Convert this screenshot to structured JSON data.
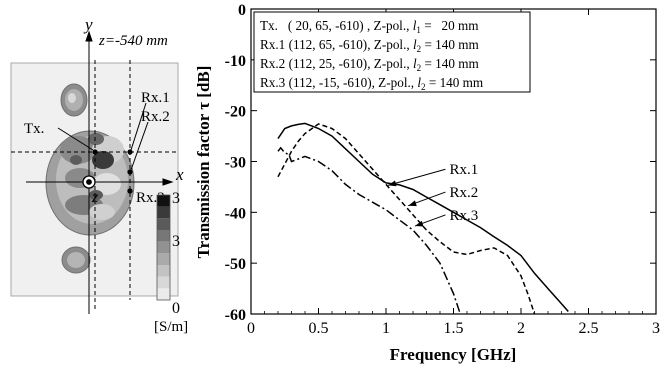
{
  "model_panel": {
    "y_axis_label": "y",
    "x_axis_label": "x",
    "z_axis_label": "z",
    "slice_label": "z=-540 mm",
    "tx_label": "Tx.",
    "rx_labels": [
      "Rx.1",
      "Rx.2",
      "Rx.3"
    ],
    "colorbar": {
      "max_label": "3",
      "mid_label": "3",
      "min_label": "0",
      "unit_label": "[S/m]",
      "colors": [
        "#111111",
        "#3a3a3a",
        "#5a5a5a",
        "#777777",
        "#929292",
        "#aaaaaa",
        "#c2c2c2",
        "#d8d8d8",
        "#ebebeb"
      ]
    }
  },
  "legend": {
    "lines": [
      {
        "prefix": "Tx.   ( 20, 65, -610) , Z-pol., ",
        "var": "l",
        "sub": "1",
        "suffix": " =   20 mm"
      },
      {
        "prefix": "Rx.1 (112, 65, -610), Z-pol., ",
        "var": "l",
        "sub": "2",
        "suffix": " = 140 mm"
      },
      {
        "prefix": "Rx.2 (112, 25, -610), Z-pol., ",
        "var": "l",
        "sub": "2",
        "suffix": " = 140 mm"
      },
      {
        "prefix": "Rx.3 (112, -15, -610), Z-pol., ",
        "var": "l",
        "sub": "2",
        "suffix": " = 140 mm"
      }
    ]
  },
  "chart_data": {
    "type": "line",
    "xlabel": "Frequency [GHz]",
    "ylabel": "Transmission factor τ [dB]",
    "xlim": [
      0,
      3
    ],
    "ylim": [
      -60,
      0
    ],
    "xticks": [
      0,
      0.5,
      1,
      1.5,
      2,
      2.5,
      3
    ],
    "xtick_labels": [
      "0",
      "0.5",
      "1",
      "1.5",
      "2",
      "2.5",
      "3"
    ],
    "yticks": [
      0,
      -10,
      -20,
      -30,
      -40,
      -50,
      -60
    ],
    "ytick_labels": [
      "0",
      "-10",
      "-20",
      "-30",
      "-40",
      "-50",
      "-60"
    ],
    "grid": false,
    "series": [
      {
        "name": "Rx.1",
        "style": "solid",
        "x": [
          0.2,
          0.25,
          0.3,
          0.35,
          0.4,
          0.5,
          0.6,
          0.7,
          0.8,
          0.9,
          1.0,
          1.1,
          1.2,
          1.3,
          1.4,
          1.5,
          1.6,
          1.7,
          1.8,
          1.9,
          2.0,
          2.1,
          2.2,
          2.3,
          2.35
        ],
        "y": [
          -25.5,
          -23.5,
          -23.0,
          -22.7,
          -22.5,
          -23.5,
          -25.0,
          -27.5,
          -30.0,
          -32.5,
          -34.2,
          -34.6,
          -35.5,
          -37.0,
          -38.5,
          -40.0,
          -41.5,
          -43.0,
          -44.8,
          -46.5,
          -48.5,
          -52.0,
          -55.0,
          -58.0,
          -59.5
        ]
      },
      {
        "name": "Rx.2",
        "style": "dashed",
        "x": [
          0.2,
          0.25,
          0.3,
          0.35,
          0.4,
          0.5,
          0.6,
          0.7,
          0.8,
          0.9,
          1.0,
          1.1,
          1.2,
          1.3,
          1.4,
          1.5,
          1.6,
          1.7,
          1.8,
          1.9,
          2.0,
          2.05,
          2.1
        ],
        "y": [
          -33.0,
          -30.5,
          -28.0,
          -26.0,
          -24.5,
          -22.6,
          -23.5,
          -25.5,
          -28.5,
          -31.5,
          -34.5,
          -37.5,
          -40.5,
          -43.5,
          -45.8,
          -47.8,
          -48.3,
          -47.5,
          -47.0,
          -48.5,
          -52.5,
          -56.0,
          -60.0
        ]
      },
      {
        "name": "Rx.3",
        "style": "dashdot",
        "x": [
          0.2,
          0.22,
          0.25,
          0.28,
          0.3,
          0.35,
          0.4,
          0.5,
          0.6,
          0.7,
          0.8,
          0.9,
          1.0,
          1.1,
          1.2,
          1.3,
          1.4,
          1.5,
          1.55
        ],
        "y": [
          -28.0,
          -27.3,
          -28.3,
          -28.6,
          -30.0,
          -29.5,
          -29.0,
          -30.0,
          -31.8,
          -34.5,
          -36.5,
          -38.0,
          -39.5,
          -41.5,
          -43.5,
          -46.5,
          -50.0,
          -56.0,
          -60.0
        ]
      }
    ],
    "annotations": [
      {
        "text": "Rx.1",
        "target_x": 1.0,
        "target_y": -34.5
      },
      {
        "text": "Rx.2",
        "target_x": 1.15,
        "target_y": -38.5
      },
      {
        "text": "Rx.3",
        "target_x": 1.2,
        "target_y": -42.5
      }
    ]
  }
}
